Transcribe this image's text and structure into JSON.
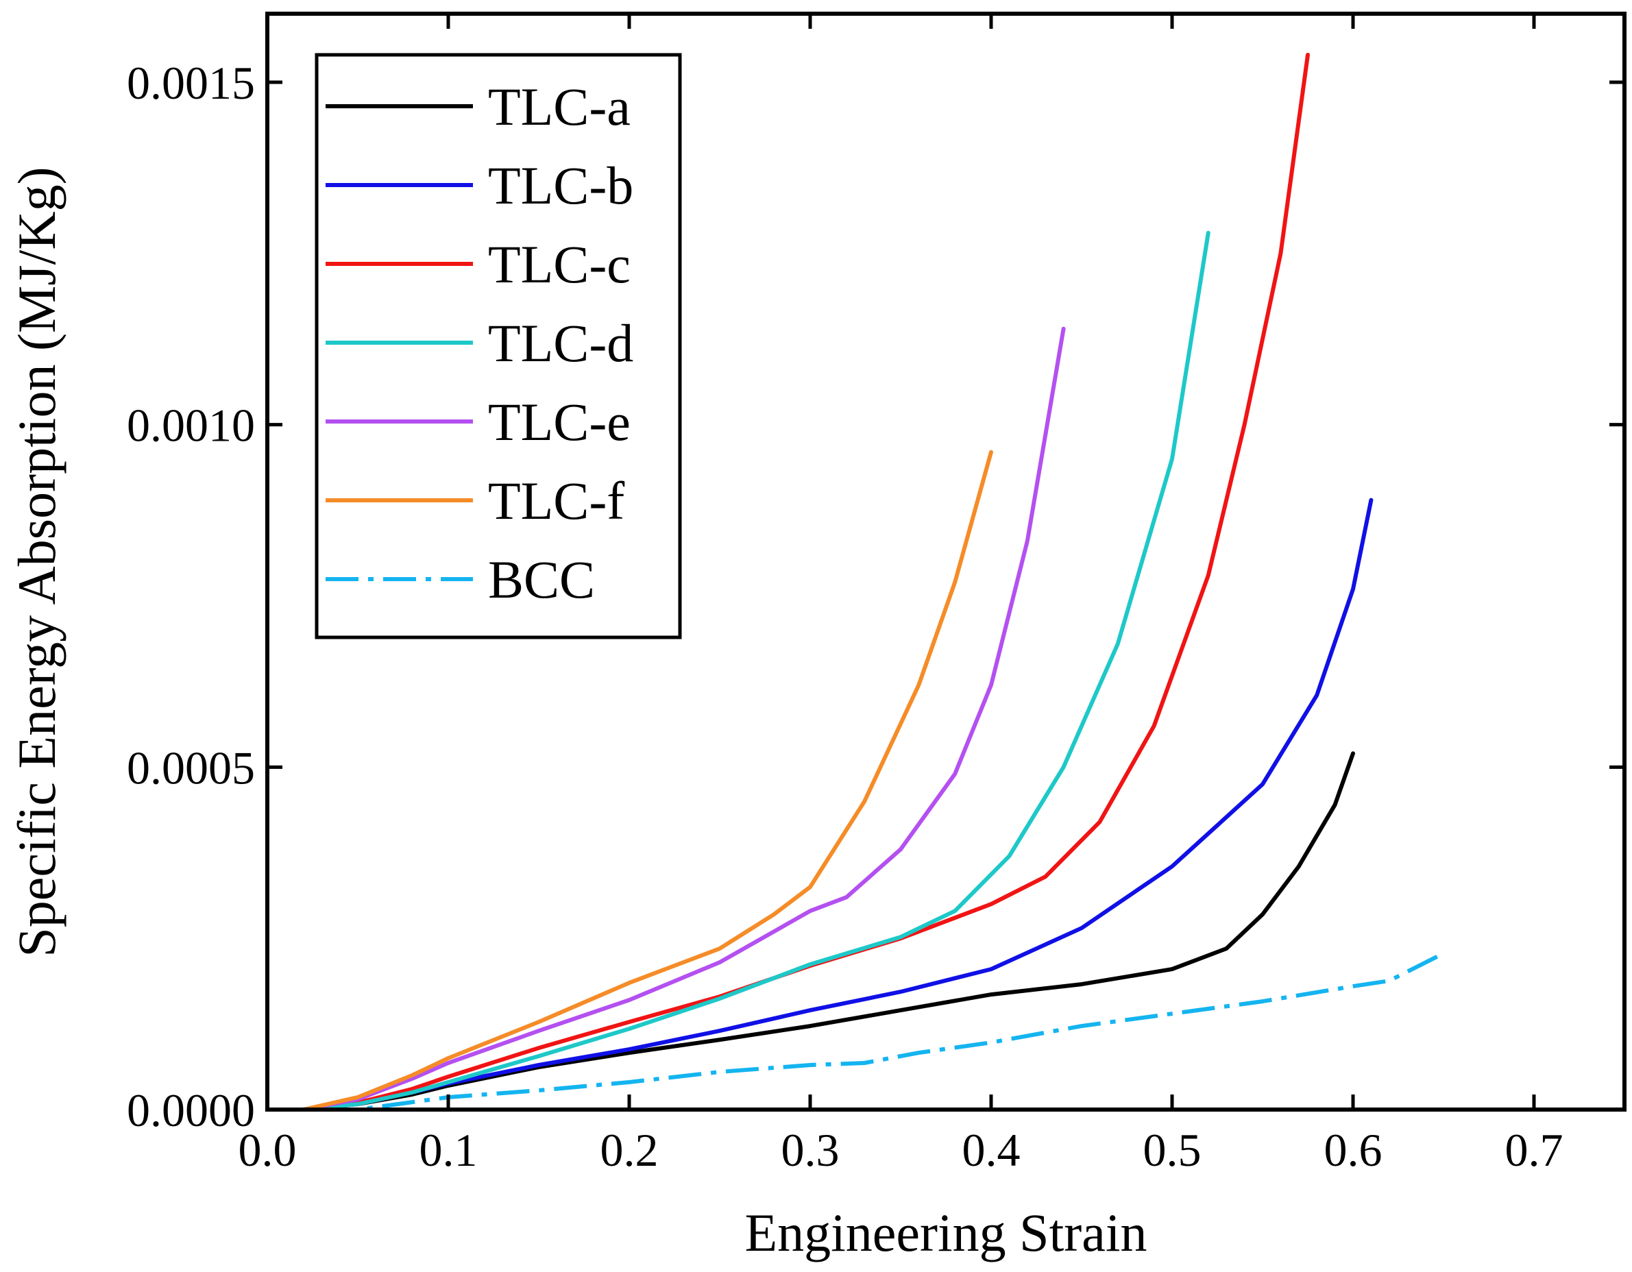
{
  "chart_data": {
    "type": "line",
    "title": "",
    "xlabel": "Engineering Strain",
    "ylabel": "Specific Energy Absorption (MJ/Kg)",
    "xlim": [
      0.0,
      0.75
    ],
    "ylim": [
      0.0,
      0.0016
    ],
    "x_ticks": [
      "0.0",
      "0.1",
      "0.2",
      "0.3",
      "0.4",
      "0.5",
      "0.6",
      "0.7"
    ],
    "x_tick_values": [
      0.0,
      0.1,
      0.2,
      0.3,
      0.4,
      0.5,
      0.6,
      0.7
    ],
    "y_ticks": [
      "0.0000",
      "0.0005",
      "0.0010",
      "0.0015"
    ],
    "y_tick_values": [
      0.0,
      0.0005,
      0.001,
      0.0015
    ],
    "grid": false,
    "legend_position": "top-left",
    "series": [
      {
        "name": "TLC-a",
        "color": "#000000",
        "dash": "solid",
        "points": [
          [
            0.0,
            0.0
          ],
          [
            0.02,
            0.0
          ],
          [
            0.05,
            8e-06
          ],
          [
            0.08,
            2.2e-05
          ],
          [
            0.1,
            3.5e-05
          ],
          [
            0.15,
            6.2e-05
          ],
          [
            0.2,
            8.3e-05
          ],
          [
            0.25,
            0.000102
          ],
          [
            0.3,
            0.000122
          ],
          [
            0.35,
            0.000145
          ],
          [
            0.4,
            0.000168
          ],
          [
            0.45,
            0.000183
          ],
          [
            0.5,
            0.000205
          ],
          [
            0.53,
            0.000235
          ],
          [
            0.55,
            0.000285
          ],
          [
            0.57,
            0.000355
          ],
          [
            0.59,
            0.000445
          ],
          [
            0.6,
            0.00052
          ]
        ]
      },
      {
        "name": "TLC-b",
        "color": "#1010e6",
        "dash": "solid",
        "points": [
          [
            0.0,
            0.0
          ],
          [
            0.02,
            0.0
          ],
          [
            0.05,
            8e-06
          ],
          [
            0.08,
            2.5e-05
          ],
          [
            0.1,
            3.8e-05
          ],
          [
            0.15,
            6.5e-05
          ],
          [
            0.2,
            8.8e-05
          ],
          [
            0.25,
            0.000115
          ],
          [
            0.3,
            0.000145
          ],
          [
            0.35,
            0.000172
          ],
          [
            0.4,
            0.000205
          ],
          [
            0.45,
            0.000265
          ],
          [
            0.5,
            0.000355
          ],
          [
            0.55,
            0.000475
          ],
          [
            0.58,
            0.000605
          ],
          [
            0.6,
            0.00076
          ],
          [
            0.61,
            0.00089
          ]
        ]
      },
      {
        "name": "TLC-c",
        "color": "#f01414",
        "dash": "solid",
        "points": [
          [
            0.0,
            0.0
          ],
          [
            0.02,
            0.0
          ],
          [
            0.05,
            1e-05
          ],
          [
            0.08,
            3e-05
          ],
          [
            0.1,
            4.8e-05
          ],
          [
            0.15,
            9e-05
          ],
          [
            0.2,
            0.000128
          ],
          [
            0.25,
            0.000165
          ],
          [
            0.3,
            0.00021
          ],
          [
            0.35,
            0.00025
          ],
          [
            0.4,
            0.0003
          ],
          [
            0.43,
            0.00034
          ],
          [
            0.46,
            0.00042
          ],
          [
            0.49,
            0.00056
          ],
          [
            0.52,
            0.00078
          ],
          [
            0.54,
            0.001
          ],
          [
            0.56,
            0.00125
          ],
          [
            0.575,
            0.00154
          ]
        ]
      },
      {
        "name": "TLC-d",
        "color": "#1ec8c8",
        "dash": "solid",
        "points": [
          [
            0.0,
            0.0
          ],
          [
            0.02,
            0.0
          ],
          [
            0.05,
            8e-06
          ],
          [
            0.08,
            2.5e-05
          ],
          [
            0.1,
            4e-05
          ],
          [
            0.15,
            7.8e-05
          ],
          [
            0.2,
            0.000118
          ],
          [
            0.25,
            0.000162
          ],
          [
            0.3,
            0.000212
          ],
          [
            0.35,
            0.000252
          ],
          [
            0.38,
            0.00029
          ],
          [
            0.41,
            0.00037
          ],
          [
            0.44,
            0.0005
          ],
          [
            0.47,
            0.00068
          ],
          [
            0.5,
            0.00095
          ],
          [
            0.52,
            0.00128
          ]
        ]
      },
      {
        "name": "TLC-e",
        "color": "#b450f0",
        "dash": "solid",
        "points": [
          [
            0.0,
            0.0
          ],
          [
            0.02,
            0.0
          ],
          [
            0.05,
            1.5e-05
          ],
          [
            0.08,
            4.5e-05
          ],
          [
            0.1,
            6.8e-05
          ],
          [
            0.15,
            0.000115
          ],
          [
            0.2,
            0.00016
          ],
          [
            0.25,
            0.000215
          ],
          [
            0.3,
            0.00029
          ],
          [
            0.32,
            0.00031
          ],
          [
            0.35,
            0.00038
          ],
          [
            0.38,
            0.00049
          ],
          [
            0.4,
            0.00062
          ],
          [
            0.42,
            0.00083
          ],
          [
            0.44,
            0.00114
          ]
        ]
      },
      {
        "name": "TLC-f",
        "color": "#f58c28",
        "dash": "solid",
        "points": [
          [
            0.0,
            0.0
          ],
          [
            0.02,
            0.0
          ],
          [
            0.05,
            1.8e-05
          ],
          [
            0.08,
            5e-05
          ],
          [
            0.1,
            7.5e-05
          ],
          [
            0.15,
            0.000128
          ],
          [
            0.2,
            0.000185
          ],
          [
            0.25,
            0.000235
          ],
          [
            0.28,
            0.000285
          ],
          [
            0.3,
            0.000325
          ],
          [
            0.33,
            0.00045
          ],
          [
            0.36,
            0.00062
          ],
          [
            0.38,
            0.00077
          ],
          [
            0.4,
            0.00096
          ]
        ]
      },
      {
        "name": "BCC",
        "color": "#14b4f0",
        "dash": "dashdot",
        "points": [
          [
            0.0,
            0.0
          ],
          [
            0.05,
            0.0
          ],
          [
            0.1,
            1.8e-05
          ],
          [
            0.15,
            2.8e-05
          ],
          [
            0.2,
            4e-05
          ],
          [
            0.25,
            5.5e-05
          ],
          [
            0.3,
            6.5e-05
          ],
          [
            0.33,
            6.8e-05
          ],
          [
            0.36,
            8.3e-05
          ],
          [
            0.4,
            9.8e-05
          ],
          [
            0.45,
            0.000122
          ],
          [
            0.5,
            0.00014
          ],
          [
            0.55,
            0.000158
          ],
          [
            0.6,
            0.00018
          ],
          [
            0.62,
            0.000188
          ],
          [
            0.65,
            0.000228
          ]
        ]
      }
    ]
  }
}
